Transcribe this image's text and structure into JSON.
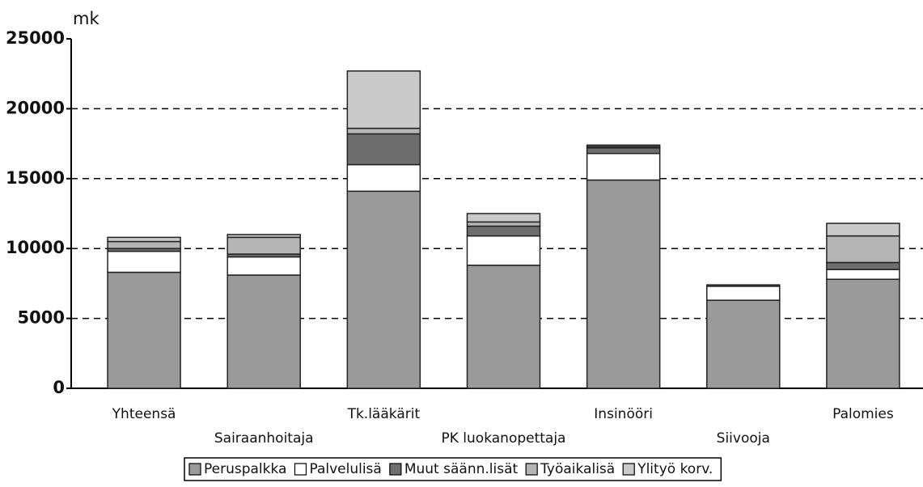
{
  "chart_data": {
    "type": "stacked_bar",
    "y_label": "mk",
    "categories": [
      "Yhteensä",
      "Sairaanhoitaja",
      "Tk.lääkärit",
      "PK luokanopettaja",
      "Insinööri",
      "Siivooja",
      "Palomies"
    ],
    "series": [
      {
        "name": "Peruspalkka",
        "color": "#9a9a9a",
        "values": [
          8300,
          8100,
          14100,
          8800,
          14900,
          6300,
          7800
        ]
      },
      {
        "name": "Palvelulisä",
        "color": "#ffffff",
        "values": [
          1500,
          1300,
          1900,
          2100,
          1900,
          1000,
          700
        ]
      },
      {
        "name": "Muut säänn.lisät",
        "color": "#6e6e6e",
        "values": [
          200,
          200,
          2200,
          700,
          400,
          100,
          500
        ]
      },
      {
        "name": "Työaikalisä",
        "color": "#b5b5b5",
        "values": [
          500,
          1200,
          400,
          300,
          100,
          0,
          1900
        ]
      },
      {
        "name": "Ylityö korv.",
        "color": "#cacaca",
        "values": [
          300,
          200,
          4100,
          600,
          100,
          0,
          900
        ]
      }
    ],
    "ylim": [
      0,
      25000
    ],
    "yticks": [
      0,
      5000,
      10000,
      15000,
      20000,
      25000
    ],
    "grid": true,
    "legend": "bottom"
  }
}
